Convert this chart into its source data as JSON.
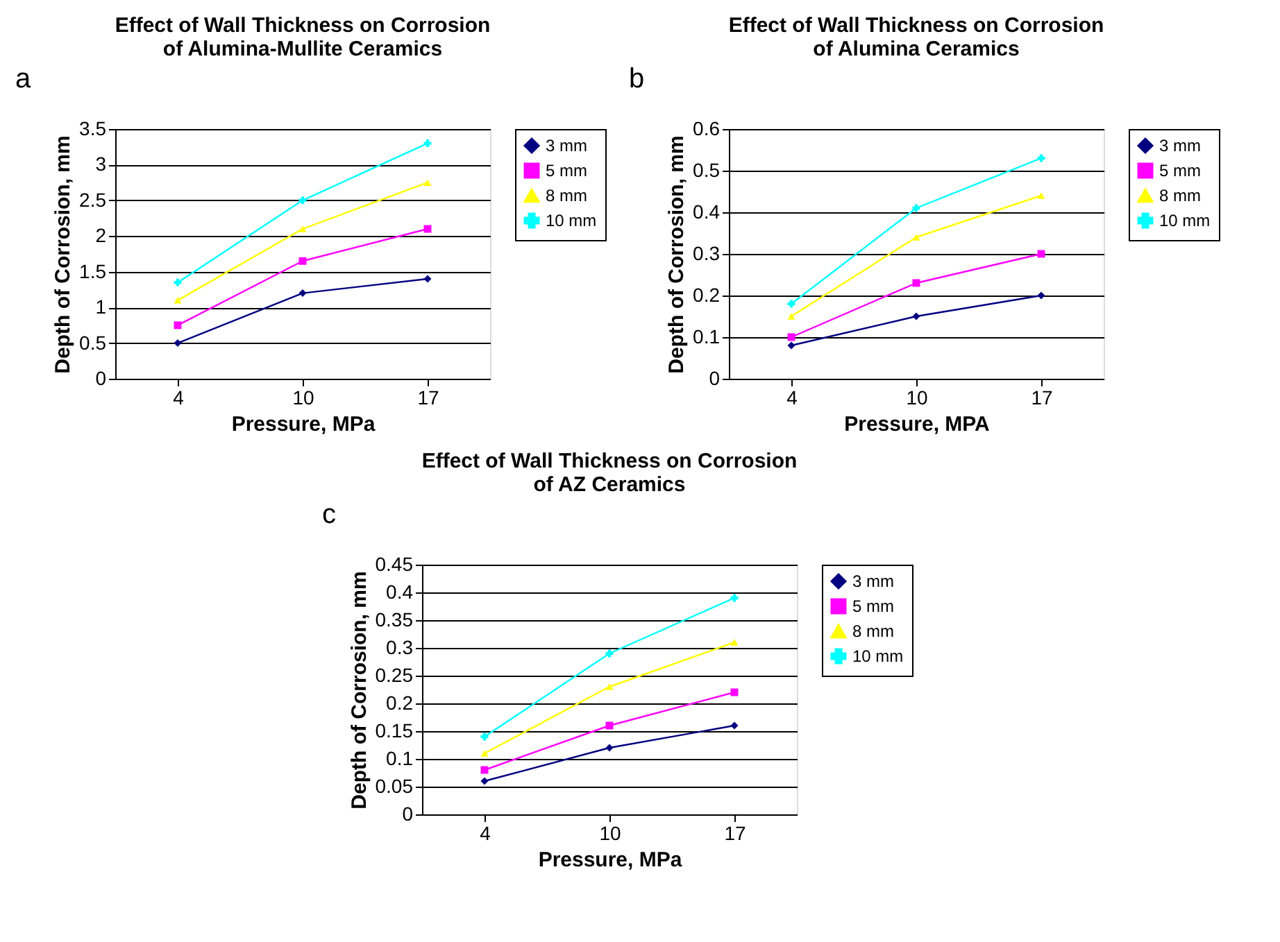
{
  "chart_data": [
    {
      "type": "line",
      "title": "Effect of Wall Thickness on Corrosion\nof Alumina-Mullite Ceramics",
      "annotations": [
        "a"
      ],
      "xlabel": "Pressure, MPa",
      "ylabel": "Depth of Corrosion, mm",
      "categories": [
        "4",
        "10",
        "17"
      ],
      "ylim": [
        0,
        3.5
      ],
      "yticks": [
        0,
        0.5,
        1,
        1.5,
        2,
        2.5,
        3,
        3.5
      ],
      "grid": "y",
      "legend": "right",
      "series": [
        {
          "name": "3 mm",
          "color": "#000080",
          "marker": "diamond",
          "values": [
            0.5,
            1.2,
            1.4
          ]
        },
        {
          "name": "5 mm",
          "color": "#ff00ff",
          "marker": "square",
          "values": [
            0.75,
            1.65,
            2.1
          ]
        },
        {
          "name": "8 mm",
          "color": "#ffff00",
          "marker": "triangle",
          "values": [
            1.1,
            2.1,
            2.75
          ]
        },
        {
          "name": "10 mm",
          "color": "#00ffff",
          "marker": "cross",
          "values": [
            1.35,
            2.5,
            3.3
          ]
        }
      ]
    },
    {
      "type": "line",
      "title": "Effect of Wall Thickness on Corrosion\nof Alumina Ceramics",
      "annotations": [
        "b"
      ],
      "xlabel": "Pressure, MPA",
      "ylabel": "Depth of Corrosion, mm",
      "categories": [
        "4",
        "10",
        "17"
      ],
      "ylim": [
        0,
        0.6
      ],
      "yticks": [
        0,
        0.1,
        0.2,
        0.3,
        0.4,
        0.5,
        0.6
      ],
      "grid": "y",
      "legend": "right",
      "series": [
        {
          "name": "3 mm",
          "color": "#000080",
          "marker": "diamond",
          "values": [
            0.08,
            0.15,
            0.2
          ]
        },
        {
          "name": "5 mm",
          "color": "#ff00ff",
          "marker": "square",
          "values": [
            0.1,
            0.23,
            0.3
          ]
        },
        {
          "name": "8 mm",
          "color": "#ffff00",
          "marker": "triangle",
          "values": [
            0.15,
            0.34,
            0.44
          ]
        },
        {
          "name": "10 mm",
          "color": "#00ffff",
          "marker": "cross",
          "values": [
            0.18,
            0.41,
            0.53
          ]
        }
      ]
    },
    {
      "type": "line",
      "title": "Effect of Wall Thickness on Corrosion\nof AZ Ceramics",
      "annotations": [
        "c"
      ],
      "xlabel": "Pressure, MPa",
      "ylabel": "Depth of Corrosion, mm",
      "categories": [
        "4",
        "10",
        "17"
      ],
      "ylim": [
        0,
        0.45
      ],
      "yticks": [
        0,
        0.05,
        0.1,
        0.15,
        0.2,
        0.25,
        0.3,
        0.35,
        0.4,
        0.45
      ],
      "grid": "y",
      "legend": "right",
      "series": [
        {
          "name": "3 mm",
          "color": "#000080",
          "marker": "diamond",
          "values": [
            0.06,
            0.12,
            0.16
          ]
        },
        {
          "name": "5 mm",
          "color": "#ff00ff",
          "marker": "square",
          "values": [
            0.08,
            0.16,
            0.22
          ]
        },
        {
          "name": "8 mm",
          "color": "#ffff00",
          "marker": "triangle",
          "values": [
            0.11,
            0.23,
            0.31
          ]
        },
        {
          "name": "10 mm",
          "color": "#00ffff",
          "marker": "cross",
          "values": [
            0.14,
            0.29,
            0.39
          ]
        }
      ]
    }
  ]
}
